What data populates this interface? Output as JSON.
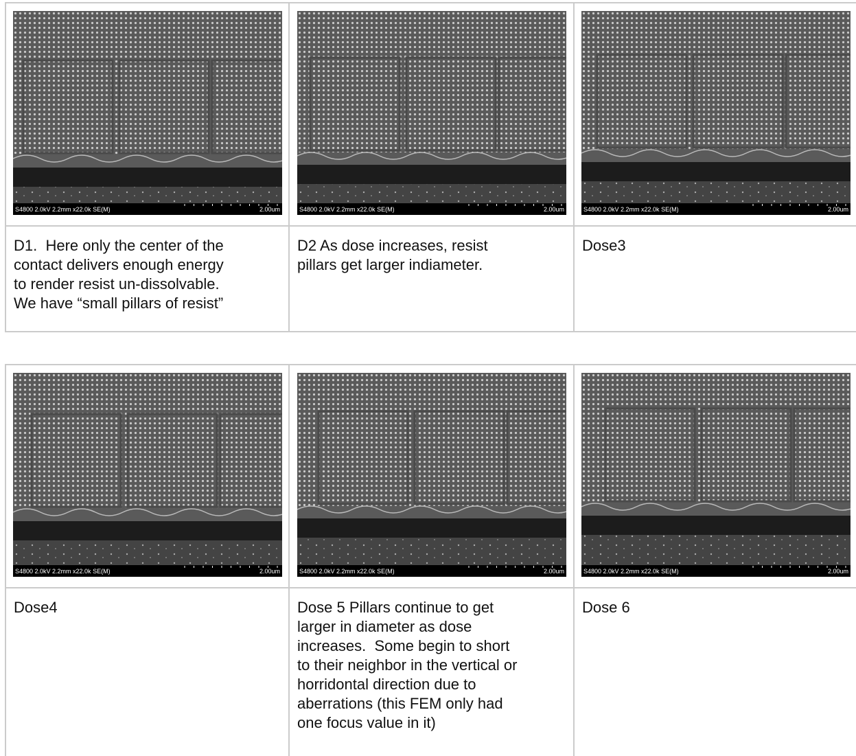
{
  "tables": [
    {
      "images": [
        {
          "info": "S4800 2.0kV 2.2mm x22.0k SE(M)",
          "scale": "2.00um"
        },
        {
          "info": "S4800 2.0kV 2.2mm x22.0k SE(M)",
          "scale": "2.00um"
        },
        {
          "info": "S4800 2.0kV 2.2mm x22.0k SE(M)",
          "scale": "2.00um"
        }
      ],
      "captions": [
        [
          "D1.  Here only the center of the",
          "contact delivers enough energy",
          "to render resist un-dissolvable.",
          "We have “small pillars of resist”"
        ],
        [
          "D2 As dose increases, resist",
          "pillars get larger indiameter."
        ],
        [
          "Dose3"
        ]
      ]
    },
    {
      "images": [
        {
          "info": "S4800 2.0kV 2.2mm x22.0k SE(M)",
          "scale": "2.00um"
        },
        {
          "info": "S4800 2.0kV 2.2mm x22.0k SE(M)",
          "scale": "2.00um"
        },
        {
          "info": "S4800 2.0kV 2.2mm x22.0k SE(M)",
          "scale": "2.00um"
        }
      ],
      "captions": [
        [
          "Dose4"
        ],
        [
          "Dose 5 Pillars continue to get",
          "larger in diameter as dose",
          "increases.  Some begin to short",
          "to their neighbor in the vertical or",
          "horridontal direction due to",
          "aberrations (this FEM only had",
          "one focus value in it)"
        ],
        [
          "Dose 6"
        ]
      ]
    }
  ]
}
